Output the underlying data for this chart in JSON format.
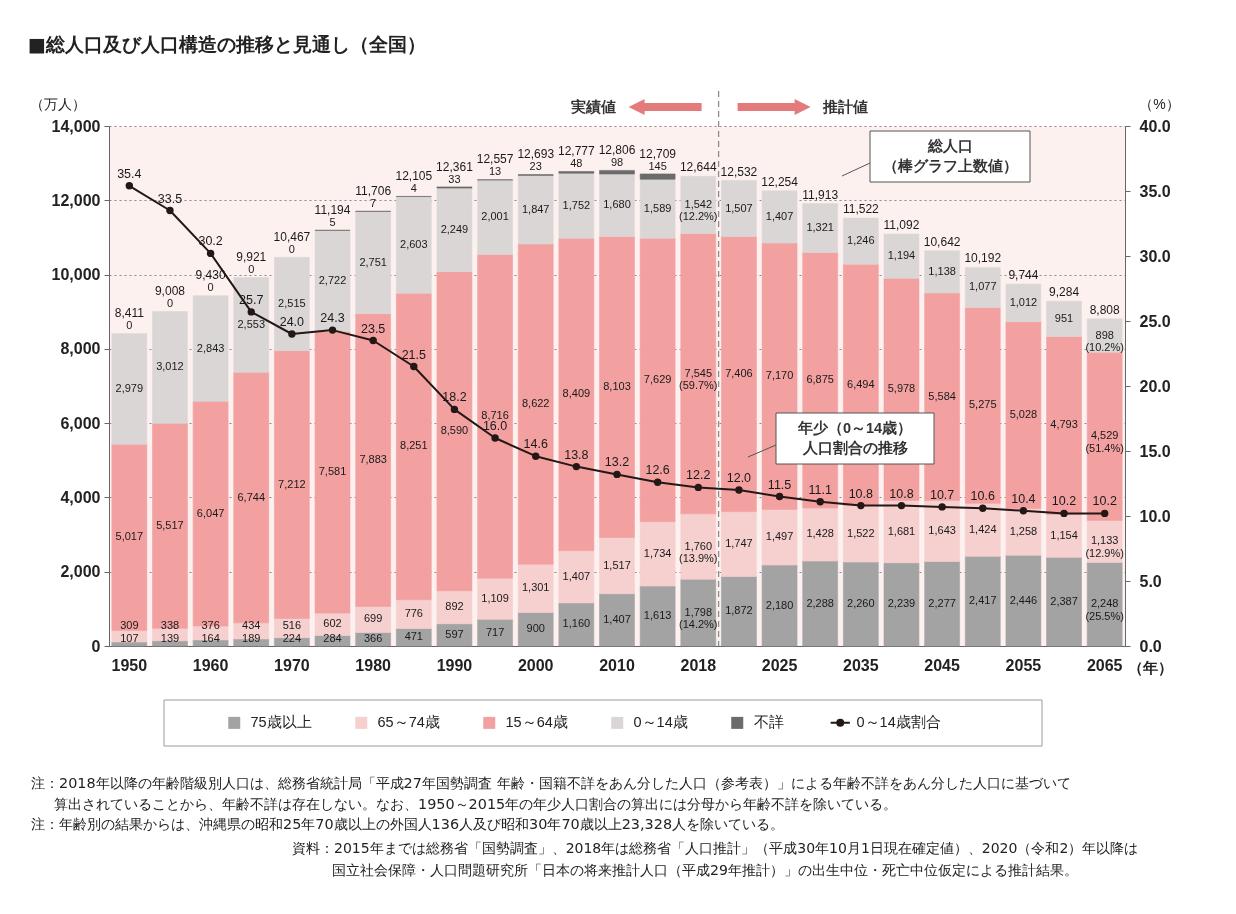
{
  "chart_data": {
    "type": "bar",
    "title": "■総人口及び人口構造の推移と見通し（全国）",
    "ylabel": "（万人）",
    "y2label": "（%）",
    "xlabel": "（年）",
    "categories": [
      "1950",
      null,
      "1960",
      null,
      "1970",
      null,
      "1980",
      null,
      "1990",
      null,
      "2000",
      null,
      "2010",
      null,
      "2018",
      null,
      "2025",
      null,
      "2035",
      null,
      "2045",
      null,
      "2055",
      null,
      "2065"
    ],
    "stacked": true,
    "series": [
      {
        "name": "75歳以上",
        "color": "#a3a3a3",
        "values": [
          107,
          139,
          164,
          189,
          224,
          284,
          366,
          471,
          597,
          717,
          900,
          1160,
          1407,
          1613,
          1798,
          1872,
          2180,
          2288,
          2260,
          2239,
          2277,
          2417,
          2446,
          2387,
          2248
        ],
        "value_labels": [
          "107",
          "139",
          "164",
          "189",
          "224",
          "284",
          "366",
          "471",
          "597",
          "717",
          "900",
          "1,160",
          "1,407",
          "1,613",
          "1,798\n(14.2%)",
          "1,872",
          "2,180",
          "2,288",
          "2,260",
          "2,239",
          "2,277",
          "2,417",
          "2,446",
          "2,387",
          "2,248\n(25.5%)"
        ]
      },
      {
        "name": "65～74歳",
        "color": "#f6cfcf",
        "values": [
          309,
          338,
          376,
          434,
          516,
          602,
          699,
          776,
          892,
          1109,
          1301,
          1407,
          1517,
          1734,
          1760,
          1747,
          1497,
          1428,
          1522,
          1681,
          1643,
          1424,
          1258,
          1154,
          1133
        ],
        "value_labels": [
          "309",
          "338",
          "376",
          "434",
          "516",
          "602",
          "699",
          "776",
          "892",
          "1,109",
          "1,301",
          "1,407",
          "1,517",
          "1,734",
          "1,760\n(13.9%)",
          "1,747",
          "1,497",
          "1,428",
          "1,522",
          "1,681",
          "1,643",
          "1,424",
          "1,258",
          "1,154",
          "1,133\n(12.9%)"
        ]
      },
      {
        "name": "15～64歳",
        "color": "#f2a0a0",
        "values": [
          5017,
          5517,
          6047,
          6744,
          7212,
          7581,
          7883,
          8251,
          8590,
          8716,
          8622,
          8409,
          8103,
          7629,
          7545,
          7406,
          7170,
          6875,
          6494,
          5978,
          5584,
          5275,
          5028,
          4793,
          4529
        ],
        "value_labels": [
          "5,017",
          "5,517",
          "6,047",
          "6,744",
          "7,212",
          "7,581",
          "7,883",
          "8,251",
          "8,590",
          "8,716",
          "8,622",
          "8,409",
          "8,103",
          "7,629",
          "7,545\n(59.7%)",
          "7,406",
          "7,170",
          "6,875",
          "6,494",
          "5,978",
          "5,584",
          "5,275",
          "5,028",
          "4,793",
          "4,529\n(51.4%)"
        ]
      },
      {
        "name": "0～14歳",
        "color": "#dbd6d6",
        "values": [
          2979,
          3012,
          2843,
          2553,
          2515,
          2722,
          2751,
          2603,
          2249,
          2001,
          1847,
          1752,
          1680,
          1589,
          1542,
          1507,
          1407,
          1321,
          1246,
          1194,
          1138,
          1077,
          1012,
          951,
          898
        ],
        "value_labels": [
          "2,979",
          "3,012",
          "2,843",
          "2,553",
          "2,515",
          "2,722",
          "2,751",
          "2,603",
          "2,249",
          "2,001",
          "1,847",
          "1,752",
          "1,680",
          "1,589",
          "1,542\n(12.2%)",
          "1,507",
          "1,407",
          "1,321",
          "1,246",
          "1,194",
          "1,138",
          "1,077",
          "1,012",
          "951",
          "898\n(10.2%)"
        ]
      },
      {
        "name": "不詳",
        "color": "#6b6b6b",
        "values": [
          0,
          0,
          0,
          0,
          0,
          5,
          7,
          4,
          33,
          13,
          23,
          48,
          98,
          145,
          null,
          null,
          null,
          null,
          null,
          null,
          null,
          null,
          null,
          null,
          null
        ],
        "value_labels": [
          "0",
          "0",
          "0",
          "0",
          "0",
          "5",
          "7",
          "4",
          "33",
          "13",
          "23",
          "48",
          "98",
          "145",
          null,
          null,
          null,
          null,
          null,
          null,
          null,
          null,
          null,
          null,
          null
        ]
      },
      {
        "name": "0～14歳割合",
        "type": "line",
        "axis": "y2",
        "color": "#231815",
        "values": [
          35.4,
          33.5,
          30.2,
          25.7,
          24.0,
          24.3,
          23.5,
          21.5,
          18.2,
          16.0,
          14.6,
          13.8,
          13.2,
          12.6,
          12.2,
          12.0,
          11.5,
          11.1,
          10.8,
          10.8,
          10.7,
          10.6,
          10.4,
          10.2,
          10.2
        ],
        "value_labels": [
          "35.4",
          "33.5",
          "30.2",
          "25.7",
          "24.0",
          "24.3",
          "23.5",
          "21.5",
          "18.2",
          "16.0",
          "14.6",
          "13.8",
          "13.2",
          "12.6",
          "12.2",
          "12.0",
          "11.5",
          "11.1",
          "10.8",
          "10.8",
          "10.7",
          "10.6",
          "10.4",
          "10.2",
          "10.2"
        ]
      }
    ],
    "totals": [
      "8,411",
      "9,008",
      "9,430",
      "9,921",
      "10,467",
      "11,194",
      "11,706",
      "12,105",
      "12,361",
      "12,557",
      "12,693",
      "12,777",
      "12,806",
      "12,709",
      "12,644",
      "12,532",
      "12,254",
      "11,913",
      "11,522",
      "11,092",
      "10,642",
      "10,192",
      "9,744",
      "9,284",
      "8,808"
    ],
    "ylim": [
      0,
      14000
    ],
    "yticks": [
      0,
      {
        "value": 2000,
        "label": "2,000"
      },
      {
        "value": 4000,
        "label": "4,000"
      },
      {
        "value": 6000,
        "label": "6,000"
      },
      {
        "value": 8000,
        "label": "8,000"
      },
      {
        "value": 10000,
        "label": "10,000"
      },
      {
        "value": 12000,
        "label": "12,000"
      },
      {
        "value": 14000,
        "label": "14,000"
      }
    ],
    "y2lim": [
      0,
      40
    ],
    "y2ticks": [
      {
        "value": 0,
        "label": "0.0"
      },
      {
        "value": 5,
        "label": "5.0"
      },
      {
        "value": 10,
        "label": "10.0"
      },
      {
        "value": 15,
        "label": "15.0"
      },
      {
        "value": 20,
        "label": "20.0"
      },
      {
        "value": 25,
        "label": "25.0"
      },
      {
        "value": 30,
        "label": "30.0"
      },
      {
        "value": 35,
        "label": "35.0"
      },
      {
        "value": 40,
        "label": "40.0"
      }
    ],
    "grid": "y",
    "legend": "bottom",
    "marker": "circle",
    "ref_lines": [
      {
        "axis": "x",
        "value": "2018",
        "line_style": "dashed",
        "color": "#8c8c8c"
      }
    ],
    "annotations": [
      "実績値",
      "推計値",
      "総人口",
      "（棒グラフ上数値）",
      "年少（0～14歳）",
      "人口割合の推移",
      "注：2018年以降の年齢階級別人口は、総務省統計局「平成27年国勢調査 年齢・国籍不詳をあん分した人口（参考表）」による年齢不詳をあん分した人口に基づいて算出されていることから、年齢不詳は存在しない。なお、1950～2015年の年少人口割合の算出には分母から年齢不詳を除いている。",
      "注：年齢別の結果からは、沖縄県の昭和25年70歳以上の外国人136人及び昭和30年70歳以上23,328人を除いている。",
      "資料：2015年までは総務省「国勢調査」、2018年は総務省「人口推計」（平成30年10月1日現在確定値）、2020（令和2）年以降は国立社会保障・人口問題研究所「日本の将来推計人口（平成29年推計）」の出生中位・死亡中位仮定による推計結果。"
    ]
  }
}
